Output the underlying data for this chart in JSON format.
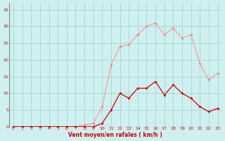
{
  "x": [
    0,
    1,
    2,
    3,
    4,
    5,
    6,
    7,
    8,
    9,
    10,
    11,
    12,
    13,
    14,
    15,
    16,
    17,
    18,
    19,
    20,
    21,
    22,
    23
  ],
  "rafales": [
    0,
    0,
    0,
    0,
    0,
    0,
    0,
    0,
    0.5,
    1,
    6,
    18.5,
    24,
    24.5,
    27.5,
    30,
    31,
    27.5,
    29.5,
    26.5,
    27.5,
    19,
    14,
    16
  ],
  "moyen": [
    0,
    0,
    0,
    0,
    0,
    0,
    0,
    0,
    0,
    0,
    1,
    5,
    10,
    8.5,
    11.5,
    11.5,
    13.5,
    9.5,
    12.5,
    10,
    8.5,
    6,
    4.5,
    5.5
  ],
  "line_color_rafales": "#f4a0a0",
  "line_color_moyen": "#cc0000",
  "marker_color_rafales": "#f08080",
  "marker_color_moyen": "#cc0000",
  "bg_color": "#cff0f0",
  "grid_color": "#a8d8d8",
  "left_border_color": "#888888",
  "xlabel": "Vent moyen/en rafales ( km/h )",
  "xlabel_color": "#cc0000",
  "tick_color": "#cc0000",
  "ylim": [
    0,
    37
  ],
  "xlim": [
    -0.5,
    23.5
  ],
  "yticks": [
    0,
    5,
    10,
    15,
    20,
    25,
    30,
    35
  ],
  "xticks": [
    0,
    1,
    2,
    3,
    4,
    5,
    6,
    7,
    8,
    9,
    10,
    11,
    12,
    13,
    14,
    15,
    16,
    17,
    18,
    19,
    20,
    21,
    22,
    23
  ]
}
